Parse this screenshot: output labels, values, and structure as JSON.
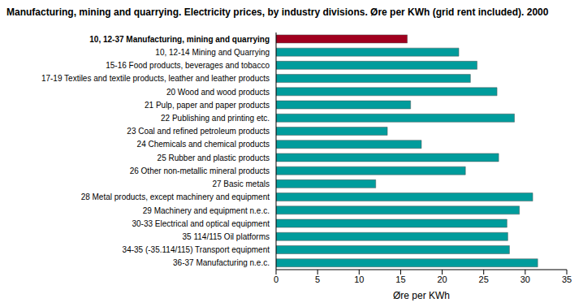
{
  "chart_data": {
    "type": "bar",
    "orientation": "horizontal",
    "title": "Manufacturing, mining and quarrying. Electricity prices, by industry divisions. Øre per KWh (grid rent included). 2000",
    "x_label": "Øre per KWh",
    "categories": [
      "10, 12-37 Manufacturing, mining and quarrying",
      "10, 12-14 Mining and Quarrying",
      "15-16 Food products, beverages and tobacco",
      "17-19 Textiles and textile products, leather and leather products",
      "20  Wood and wood products",
      "21 Pulp, paper and paper products",
      "22 Publishing and printing etc.",
      "23 Coal and refined petroleum products",
      "24 Chemicals and chemical products",
      "25  Rubber and plastic products",
      "26 Other non-metallic mineral products",
      "27 Basic metals",
      "28 Metal products, except machinery and equipment",
      "29 Machinery and equipment n.e.c.",
      "30-33  Electrical and optical equipment",
      "35 114/115 Oil platforms",
      "34-35 (-35.114/115) Transport equipment",
      "36-37 Manufacturing n.e.c."
    ],
    "values": [
      15.8,
      22.0,
      24.2,
      23.4,
      26.6,
      16.2,
      28.7,
      13.4,
      17.5,
      26.8,
      22.8,
      12.0,
      30.9,
      29.3,
      27.8,
      27.9,
      28.1,
      31.5
    ],
    "colors": [
      "#a0001e",
      "#009c9c",
      "#009c9c",
      "#009c9c",
      "#009c9c",
      "#009c9c",
      "#009c9c",
      "#009c9c",
      "#009c9c",
      "#009c9c",
      "#009c9c",
      "#009c9c",
      "#009c9c",
      "#009c9c",
      "#009c9c",
      "#009c9c",
      "#009c9c",
      "#009c9c"
    ],
    "xlim": [
      0,
      35
    ],
    "xticks": [
      0,
      5,
      10,
      15,
      20,
      25,
      30,
      35
    ],
    "grid": false
  }
}
